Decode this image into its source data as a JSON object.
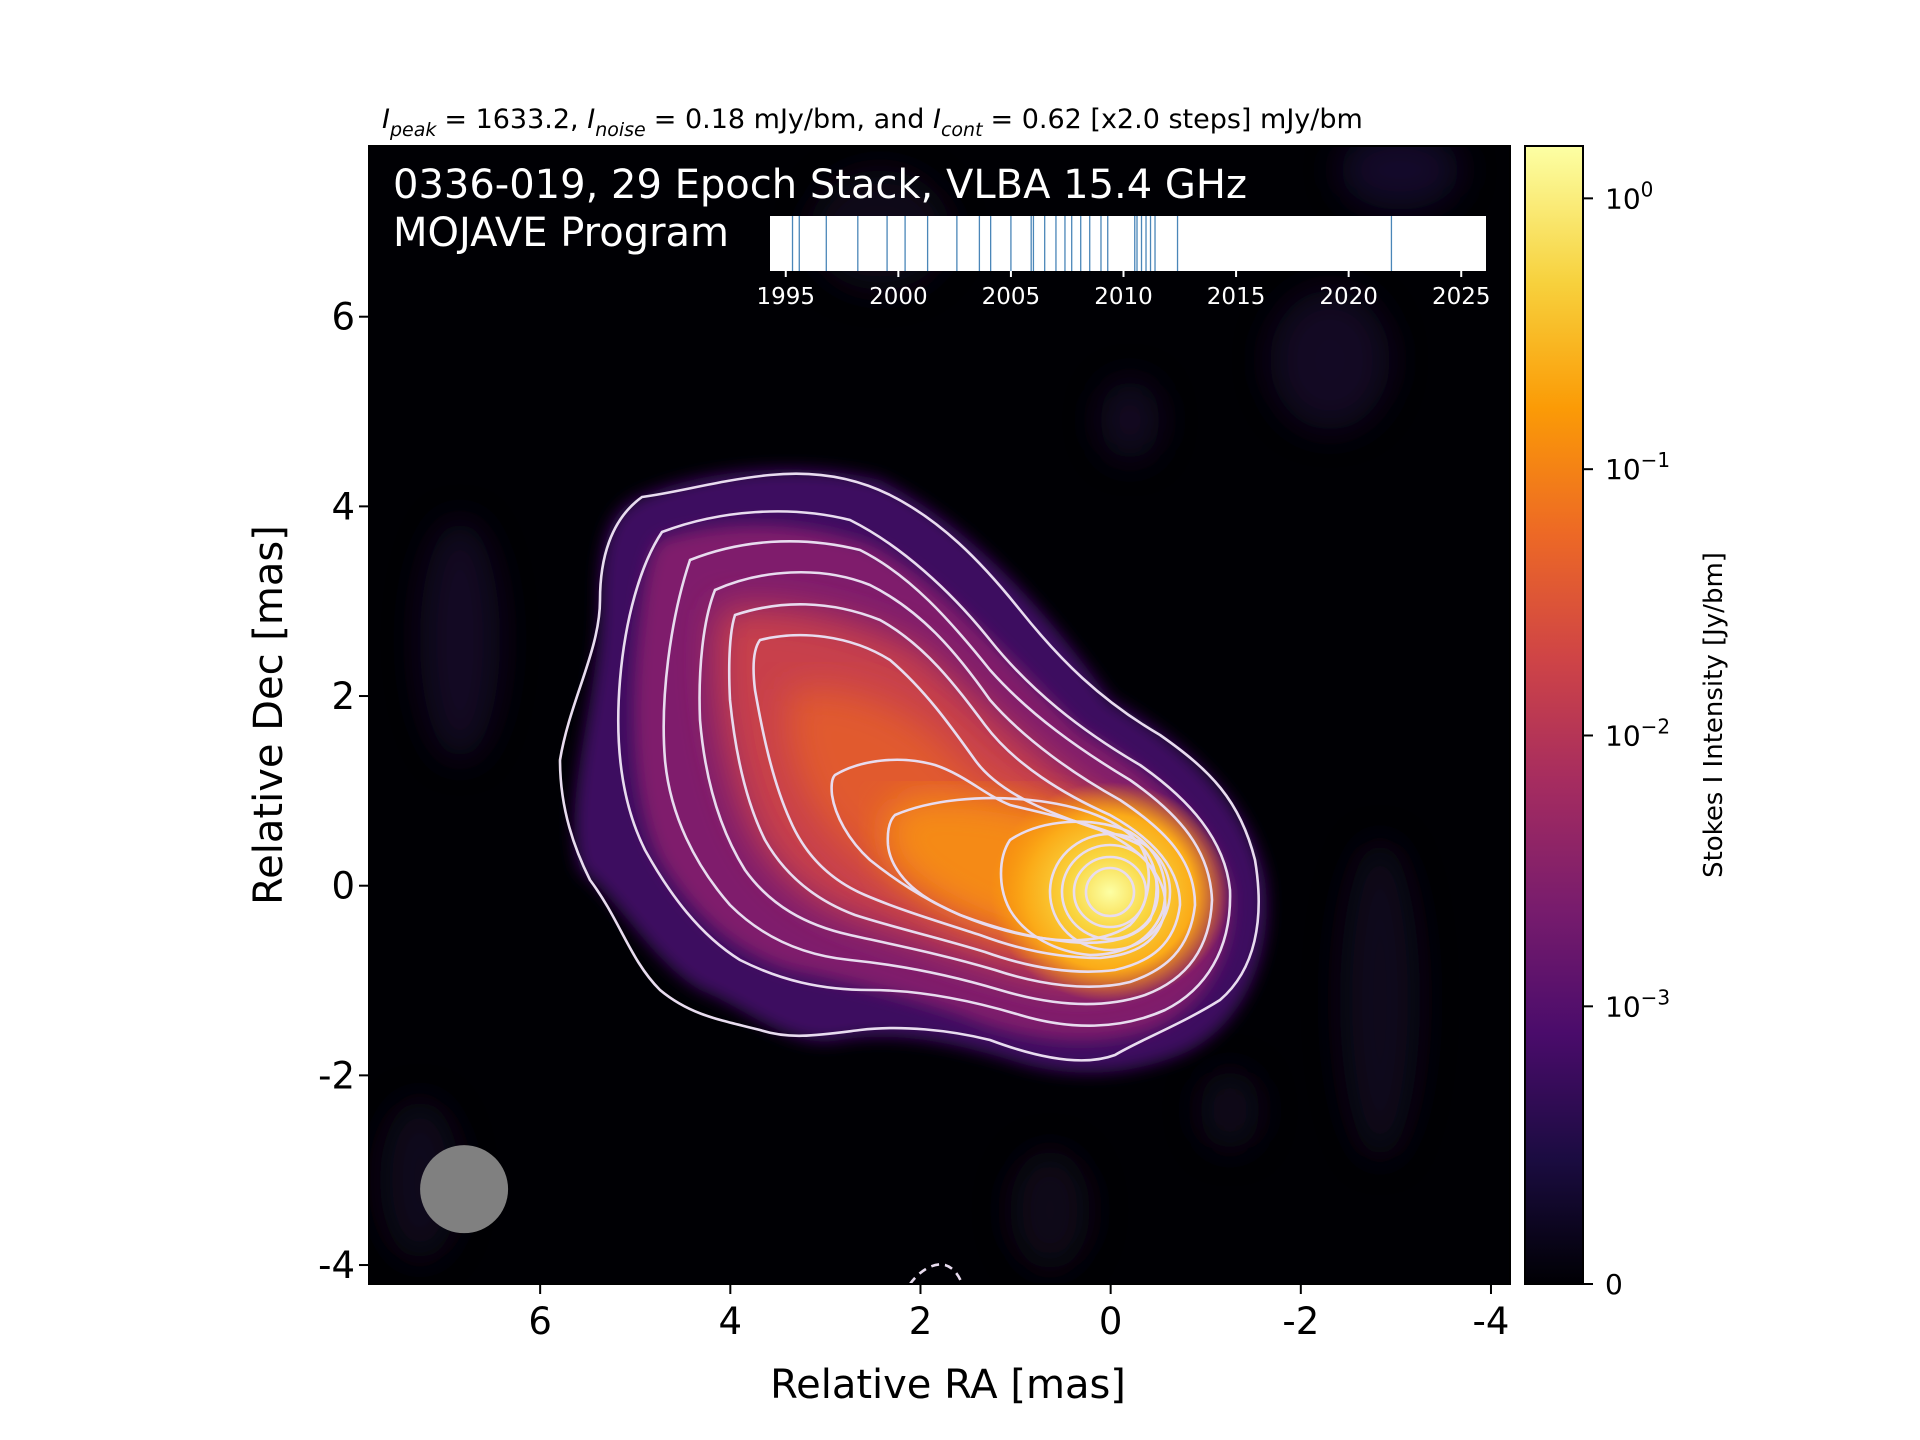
{
  "chart_data": {
    "type": "heatmap",
    "title": "0336-019, 29 Epoch Stack, VLBA 15.4 GHz",
    "subtitle": "MOJAVE Program",
    "header": {
      "peak_label": "I",
      "peak_sub": "peak",
      "peak_value": "= 1633.2, ",
      "noise_label": "I",
      "noise_sub": "noise",
      "noise_value": "= 0.18 mJy/bm, and ",
      "cont_label": "I",
      "cont_sub": "cont",
      "cont_value": "= 0.62 [x2.0 steps] mJy/bm"
    },
    "xlabel": "Relative RA [mas]",
    "ylabel": "Relative Dec [mas]",
    "xlim": [
      7.8,
      -4.2
    ],
    "ylim": [
      -4.2,
      7.8
    ],
    "xticks": [
      6,
      4,
      2,
      0,
      -2,
      -4
    ],
    "xtick_labels": [
      "6",
      "4",
      "2",
      "0",
      "-2",
      "-4"
    ],
    "yticks": [
      6,
      4,
      2,
      0,
      -2,
      -4
    ],
    "ytick_labels": [
      "6",
      "4",
      "2",
      "0",
      "-2",
      "-4"
    ],
    "colorbar": {
      "label": "Stokes I Intensity [Jy/bm]",
      "scale": "log",
      "ticks": [
        {
          "base": "10",
          "exp": "0",
          "pos": 0.954
        },
        {
          "base": "10",
          "exp": "−1",
          "pos": 0.716
        },
        {
          "base": "10",
          "exp": "−2",
          "pos": 0.482
        },
        {
          "base": "10",
          "exp": "−3",
          "pos": 0.244
        },
        {
          "base": "0",
          "exp": "",
          "pos": 0.0
        }
      ]
    },
    "colormap": [
      "#000004",
      "#1b0c41",
      "#4a0c6b",
      "#781c6d",
      "#a52c60",
      "#cf4446",
      "#ed6925",
      "#fb9b06",
      "#f7d13d",
      "#fcffa4"
    ],
    "core": {
      "ra": 0.0,
      "dec": 0.0
    },
    "contour_style": {
      "color": "#e8dcef",
      "negative_dashed": true
    },
    "beam": {
      "ra": 6.8,
      "dec": -3.2,
      "diameter_mas": 0.9,
      "color": "#808080"
    },
    "epoch_timeline": {
      "xlim": [
        1994.3,
        2026.1
      ],
      "ticks": [
        1995,
        2000,
        2005,
        2010,
        2015,
        2020,
        2025
      ],
      "epochs": [
        1995.3,
        1995.6,
        1996.8,
        1998.2,
        1999.5,
        2000.3,
        2001.3,
        2002.6,
        2003.6,
        2005.0,
        2005.9,
        2006.5,
        2007.0,
        2007.4,
        2007.7,
        2008.1,
        2008.5,
        2009.0,
        2009.3,
        2010.5,
        2010.6,
        2010.8,
        2011.0,
        2011.2,
        2011.4,
        2012.4,
        2021.9,
        2004.1,
        2006.0
      ]
    }
  }
}
